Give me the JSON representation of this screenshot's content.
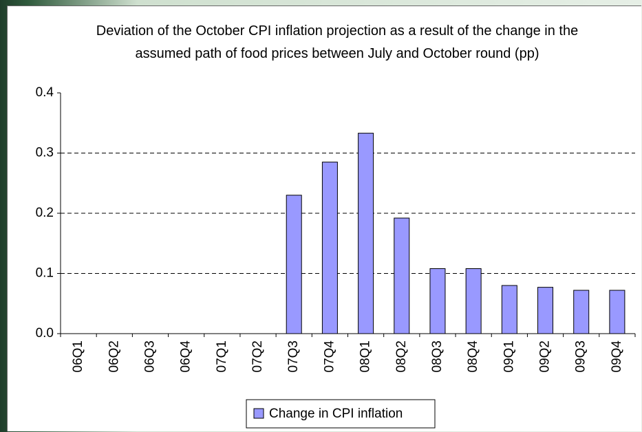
{
  "chart_data": {
    "type": "bar",
    "title": "Deviation of the October CPI inflation projection as a result of the change in the assumed path of food prices between July and October round (pp)",
    "categories": [
      "06Q1",
      "06Q2",
      "06Q3",
      "06Q4",
      "07Q1",
      "07Q2",
      "07Q3",
      "07Q4",
      "08Q1",
      "08Q2",
      "08Q3",
      "08Q4",
      "09Q1",
      "09Q2",
      "09Q3",
      "09Q4"
    ],
    "series": [
      {
        "name": "Change in CPI inflation",
        "color": "#9999ff",
        "values": [
          0,
          0,
          0,
          0,
          0,
          0,
          0.23,
          0.285,
          0.333,
          0.192,
          0.108,
          0.108,
          0.08,
          0.077,
          0.072,
          0.072
        ]
      }
    ],
    "ylim": [
      0,
      0.4
    ],
    "yticks": [
      {
        "value": 0,
        "label": "0.0"
      },
      0.1,
      0.2,
      0.3,
      0.4
    ],
    "grid": true
  }
}
